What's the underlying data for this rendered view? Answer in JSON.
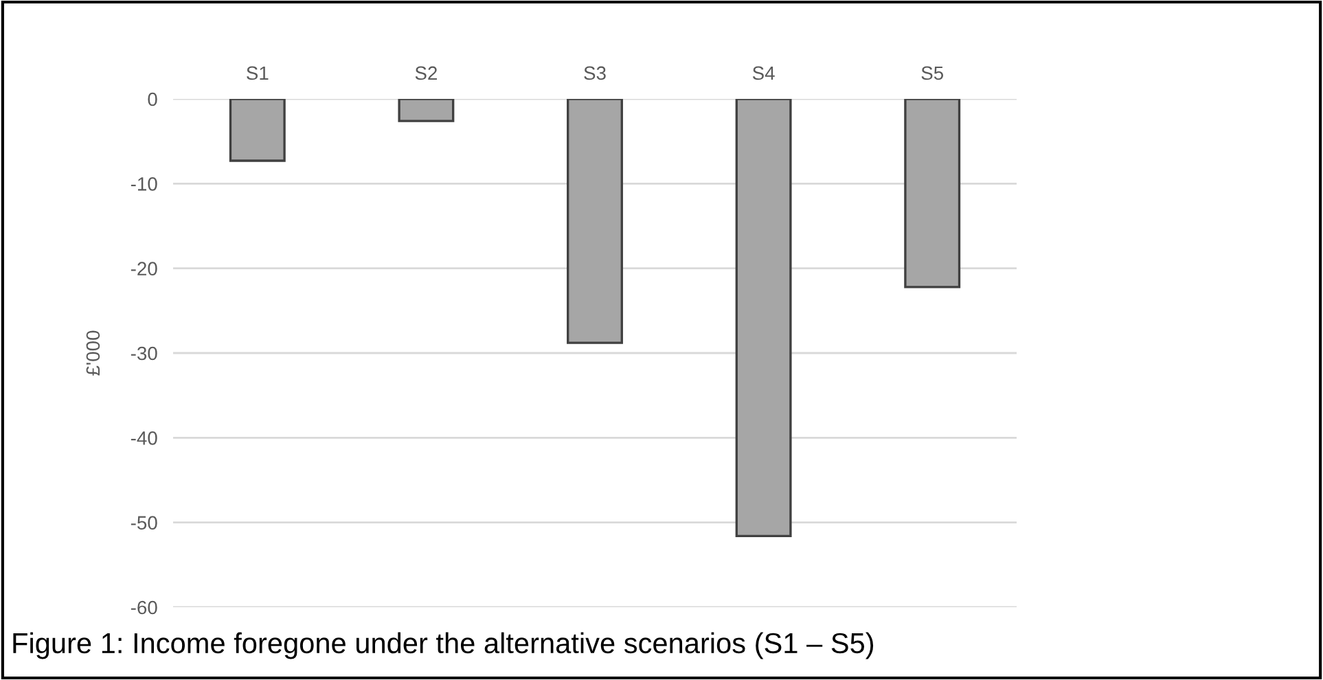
{
  "chart_data": {
    "type": "bar",
    "categories": [
      "S1",
      "S2",
      "S3",
      "S4",
      "S5"
    ],
    "values": [
      -7.3,
      -2.6,
      -28.8,
      -51.6,
      -22.2
    ],
    "color": "#a6a6a6",
    "ylabel": "£'000",
    "ylim": [
      -60,
      0
    ],
    "yticks": [
      -60,
      -50,
      -40,
      -30,
      -20,
      -10,
      0
    ],
    "grid": "y",
    "annotations": [
      "Figure 1: Income foregone under the alternative scenarios (S1 – S5)"
    ]
  }
}
